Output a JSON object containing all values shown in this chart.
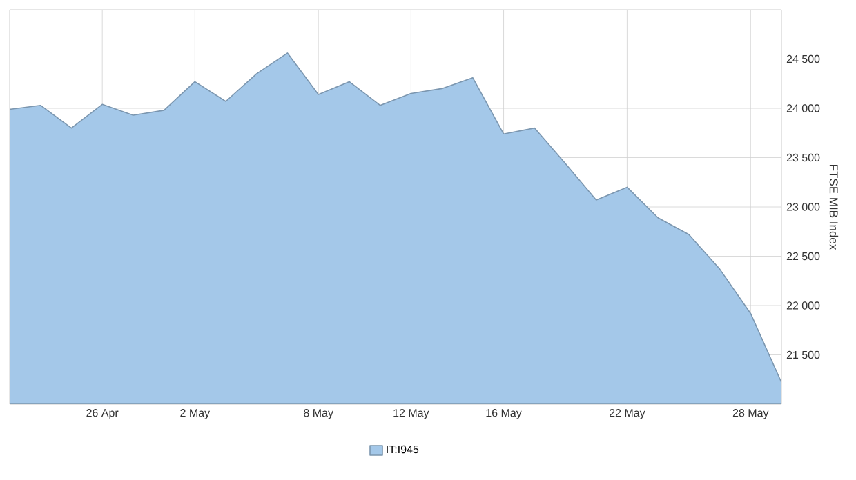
{
  "chart_data": {
    "type": "area",
    "ylabel": "FTSE MIB Index",
    "categories": [
      null,
      null,
      null,
      "26 Apr",
      null,
      null,
      "2 May",
      null,
      null,
      null,
      "8 May",
      null,
      null,
      "12 May",
      null,
      null,
      "16 May",
      null,
      null,
      null,
      "22 May",
      null,
      null,
      null,
      "28 May",
      null
    ],
    "series": [
      {
        "name": "IT:I945",
        "color": "#a4c8e9",
        "values": [
          23990,
          24030,
          23800,
          24040,
          23930,
          23980,
          24270,
          24070,
          24350,
          24560,
          24140,
          24270,
          24030,
          24150,
          24200,
          24310,
          23740,
          23800,
          23440,
          23070,
          23200,
          22890,
          22720,
          22370,
          21920,
          21220
        ]
      }
    ],
    "ylim": [
      21000,
      25000
    ],
    "yticks": [
      {
        "value": 21500,
        "label": "21 500"
      },
      {
        "value": 22000,
        "label": "22 000"
      },
      {
        "value": 22500,
        "label": "22 500"
      },
      {
        "value": 23000,
        "label": "23 000"
      },
      {
        "value": 23500,
        "label": "23 500"
      },
      {
        "value": 24000,
        "label": "24 000"
      },
      {
        "value": 24500,
        "label": "24 500"
      }
    ],
    "grid": true,
    "legend": "bottom"
  }
}
